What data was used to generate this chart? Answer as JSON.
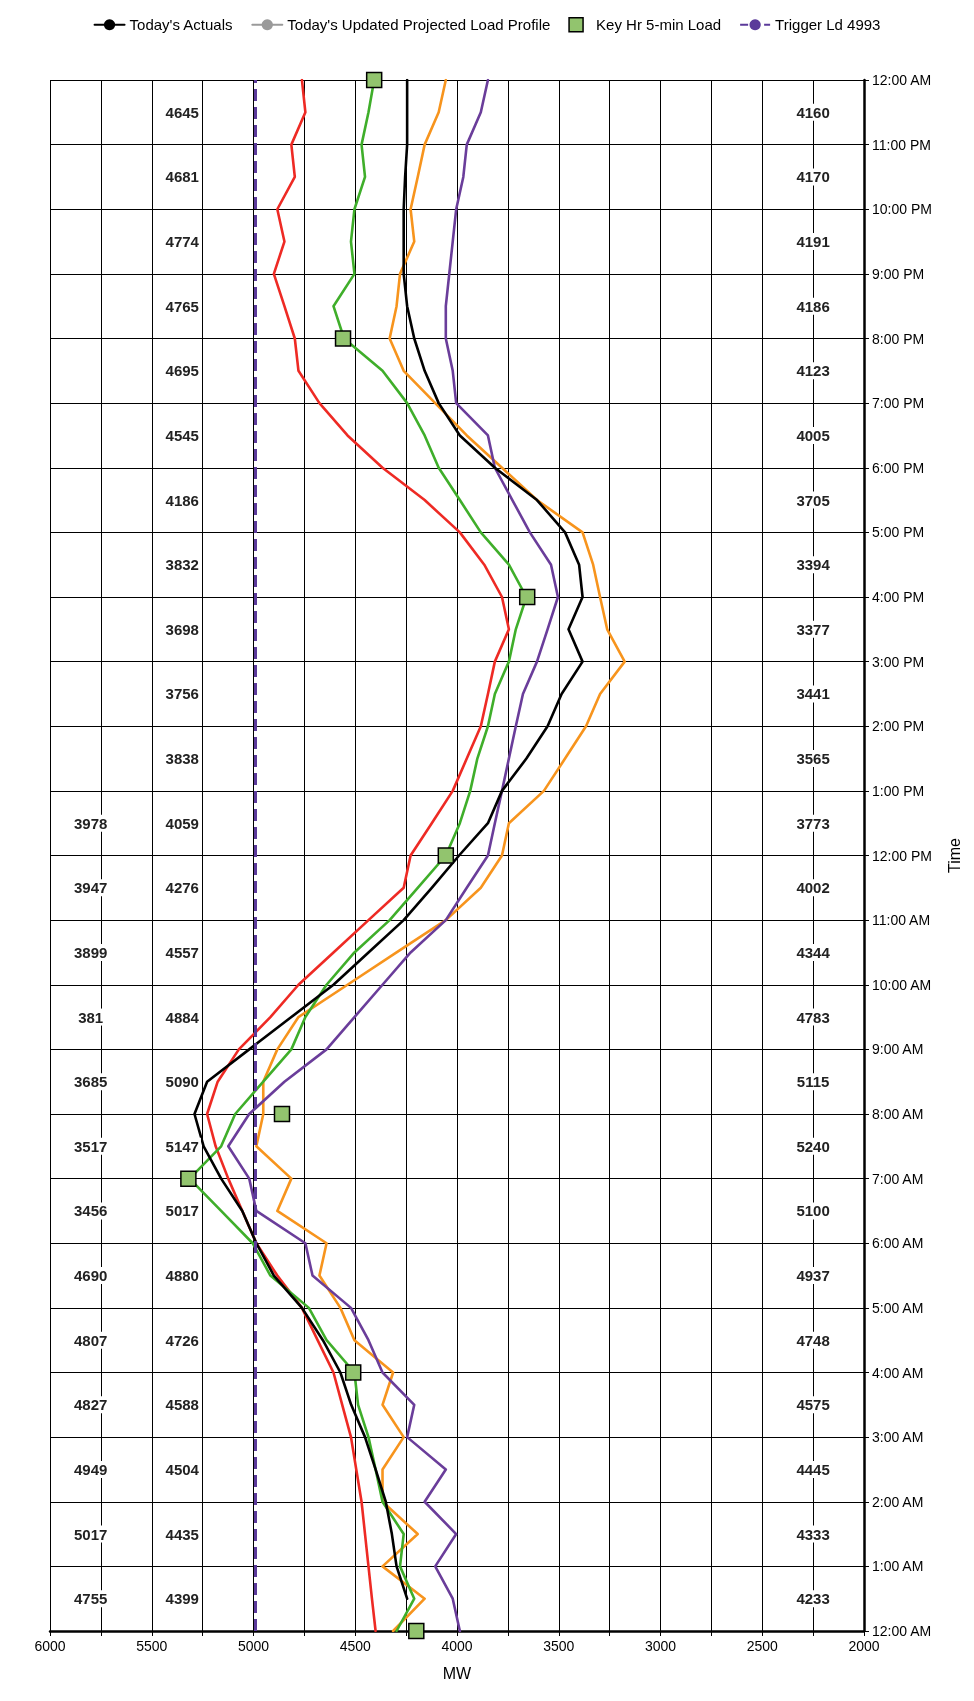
{
  "chart_data": {
    "type": "line",
    "orientation": "horizontal",
    "xlabel": "MW",
    "ylabel": "Time",
    "xlim": [
      6000,
      2000
    ],
    "xticks": [
      2000,
      {
        "value": 2250,
        "label": null
      },
      2500,
      {
        "value": 2750,
        "label": null
      },
      3000,
      {
        "value": 3250,
        "label": null
      },
      3500,
      {
        "value": 3750,
        "label": null
      },
      4000,
      {
        "value": 4250,
        "label": null
      },
      4500,
      {
        "value": 4750,
        "label": null
      },
      5000,
      {
        "value": 5250,
        "label": null
      },
      5500,
      {
        "value": 5750,
        "label": null
      },
      6000
    ],
    "ylim": [
      0,
      24
    ],
    "yticks": [
      {
        "value": 0,
        "label": "12:00 AM"
      },
      {
        "value": 1,
        "label": "1:00 AM"
      },
      {
        "value": 2,
        "label": "2:00 AM"
      },
      {
        "value": 3,
        "label": "3:00 AM"
      },
      {
        "value": 4,
        "label": "4:00 AM"
      },
      {
        "value": 5,
        "label": "5:00 AM"
      },
      {
        "value": 6,
        "label": "6:00 AM"
      },
      {
        "value": 7,
        "label": "7:00 AM"
      },
      {
        "value": 8,
        "label": "8:00 AM"
      },
      {
        "value": 9,
        "label": "9:00 AM"
      },
      {
        "value": 10,
        "label": "10:00 AM"
      },
      {
        "value": 11,
        "label": "11:00 AM"
      },
      {
        "value": 12,
        "label": "12:00 PM"
      },
      {
        "value": 13,
        "label": "1:00 PM"
      },
      {
        "value": 14,
        "label": "2:00 PM"
      },
      {
        "value": 15,
        "label": "3:00 PM"
      },
      {
        "value": 16,
        "label": "4:00 PM"
      },
      {
        "value": 17,
        "label": "5:00 PM"
      },
      {
        "value": 18,
        "label": "6:00 PM"
      },
      {
        "value": 19,
        "label": "7:00 PM"
      },
      {
        "value": 20,
        "label": "8:00 PM"
      },
      {
        "value": 21,
        "label": "9:00 PM"
      },
      {
        "value": 22,
        "label": "10:00 PM"
      },
      {
        "value": 23,
        "label": "11:00 PM"
      },
      {
        "value": 24,
        "label": "12:00 AM"
      }
    ],
    "grid": true,
    "legend": "top",
    "marker": "none",
    "x": [
      0,
      0.5,
      1,
      1.5,
      2,
      2.5,
      3,
      3.5,
      4,
      4.5,
      5,
      5.5,
      6,
      6.5,
      7,
      7.5,
      8,
      8.5,
      9,
      9.5,
      10,
      10.5,
      11,
      11.5,
      12,
      12.5,
      13,
      13.5,
      14,
      14.5,
      15,
      15.5,
      16,
      16.5,
      17,
      17.5,
      18,
      18.5,
      19,
      19.5,
      20,
      20.5,
      21,
      21.5,
      22,
      22.5,
      23,
      23.5,
      24
    ],
    "series": [
      {
        "color": "#ee2a24",
        "values": [
          4400,
          4418,
          4435,
          4452,
          4469,
          4495,
          4521,
          4564,
          4607,
          4685,
          4762,
          4883,
          4986,
          5055,
          5124,
          5186,
          5228,
          5176,
          5072,
          4917,
          4779,
          4607,
          4435,
          4262,
          4228,
          4124,
          4021,
          3952,
          3883,
          3848,
          3814,
          3745,
          3779,
          3866,
          3986,
          4159,
          4366,
          4538,
          4676,
          4779,
          4797,
          4848,
          4900,
          4848,
          4883,
          4797,
          4814,
          4745,
          4762
        ]
      },
      {
        "color": "#f7941d",
        "values": [
          4314,
          4159,
          4366,
          4193,
          4366,
          4366,
          4262,
          4366,
          4314,
          4504,
          4573,
          4676,
          4641,
          4883,
          4814,
          4986,
          4952,
          4952,
          4883,
          4779,
          4538,
          4297,
          4055,
          3883,
          3779,
          3745,
          3573,
          3469,
          3366,
          3297,
          3176,
          3262,
          3297,
          3331,
          3383,
          3607,
          3779,
          3952,
          4107,
          4262,
          4331,
          4297,
          4280,
          4210,
          4228,
          4193,
          4159,
          4090,
          4055
        ]
      },
      {
        "color": "#6a3d9a",
        "values": [
          3986,
          4021,
          4107,
          4004,
          4159,
          4055,
          4245,
          4210,
          4366,
          4435,
          4521,
          4710,
          4745,
          4986,
          5021,
          5124,
          5021,
          4848,
          4641,
          4504,
          4366,
          4228,
          4055,
          3952,
          3848,
          3814,
          3779,
          3745,
          3711,
          3676,
          3607,
          3555,
          3504,
          3538,
          3642,
          3728,
          3814,
          3848,
          4004,
          4021,
          4055,
          4055,
          4038,
          4021,
          4004,
          3969,
          3952,
          3883,
          3848
        ]
      },
      {
        "color": "#3fae2a",
        "values": [
          4297,
          4210,
          4280,
          4262,
          4366,
          4400,
          4435,
          4486,
          4504,
          4641,
          4728,
          4917,
          5004,
          5159,
          5314,
          5159,
          5090,
          4952,
          4814,
          4745,
          4641,
          4504,
          4331,
          4193,
          4055,
          3986,
          3935,
          3900,
          3848,
          3814,
          3745,
          3711,
          3659,
          3745,
          3883,
          3986,
          4090,
          4159,
          4245,
          4366,
          4555,
          4607,
          4504,
          4521,
          4504,
          4452,
          4469,
          4435,
          4407
        ]
      },
      {
        "name": "Today's Actuals",
        "color": "#000000",
        "values": [
          null,
          4245,
          4297,
          4320,
          4350,
          4400,
          4452,
          4520,
          4573,
          4659,
          4762,
          4900,
          4986,
          5055,
          5159,
          5245,
          5290,
          5228,
          5021,
          4814,
          4607,
          4435,
          4262,
          4124,
          3990,
          3848,
          3779,
          3659,
          3555,
          3486,
          3383,
          3452,
          3383,
          3400,
          3469,
          3607,
          3814,
          3986,
          4090,
          4159,
          4210,
          4245,
          4262,
          4262,
          4262,
          4255,
          4245,
          4245,
          4245
        ]
      },
      {
        "name": "Today's Updated Projected Load Profile",
        "color": "#9a9a9a",
        "values": [
          null,
          null,
          null,
          null,
          null,
          null,
          null,
          null,
          null,
          null,
          null,
          null,
          null,
          null,
          null,
          null,
          null,
          null,
          null,
          null,
          null,
          null,
          null,
          null,
          null,
          null,
          null,
          null,
          null,
          null,
          null,
          null,
          null,
          null,
          null,
          null,
          null,
          null,
          null,
          null,
          null,
          null,
          null,
          null,
          null,
          null,
          null,
          null,
          null
        ]
      },
      {
        "name": "Key Hr 5-min Load",
        "type": "scatter",
        "marker": "square",
        "color": "#92c46e",
        "x": [
          0,
          4,
          7,
          8,
          12,
          16,
          20,
          24
        ],
        "values": [
          4200,
          4510,
          5320,
          4860,
          4055,
          3655,
          4560,
          4407
        ]
      }
    ],
    "ref_lines": [
      {
        "axis": "x",
        "value": 4993,
        "label": "Trigger Ld 4993",
        "color": "#5b3a9a",
        "line_style": "dashed"
      }
    ],
    "annotations": [
      "4233",
      "4333",
      "4445",
      "4575",
      "4748",
      "4937",
      "5100",
      "5240",
      "5115",
      "4783",
      "4344",
      "4002",
      "3773",
      "3565",
      "3441",
      "3377",
      "3394",
      "3705",
      "4005",
      "4123",
      "4186",
      "4191",
      "4170",
      "4160",
      "4399",
      "4435",
      "4504",
      "4588",
      "4726",
      "4880",
      "5017",
      "5147",
      "5090",
      "4884",
      "4557",
      "4276",
      "4059",
      "3838",
      "3756",
      "3698",
      "3832",
      "4186",
      "4545",
      "4695",
      "4765",
      "4774",
      "4681",
      "4645",
      "4755",
      "5017",
      "4949",
      "4827",
      "4807",
      "4690",
      "3456",
      "3517",
      "3685",
      "381",
      "3899",
      "3947",
      "3978"
    ]
  }
}
